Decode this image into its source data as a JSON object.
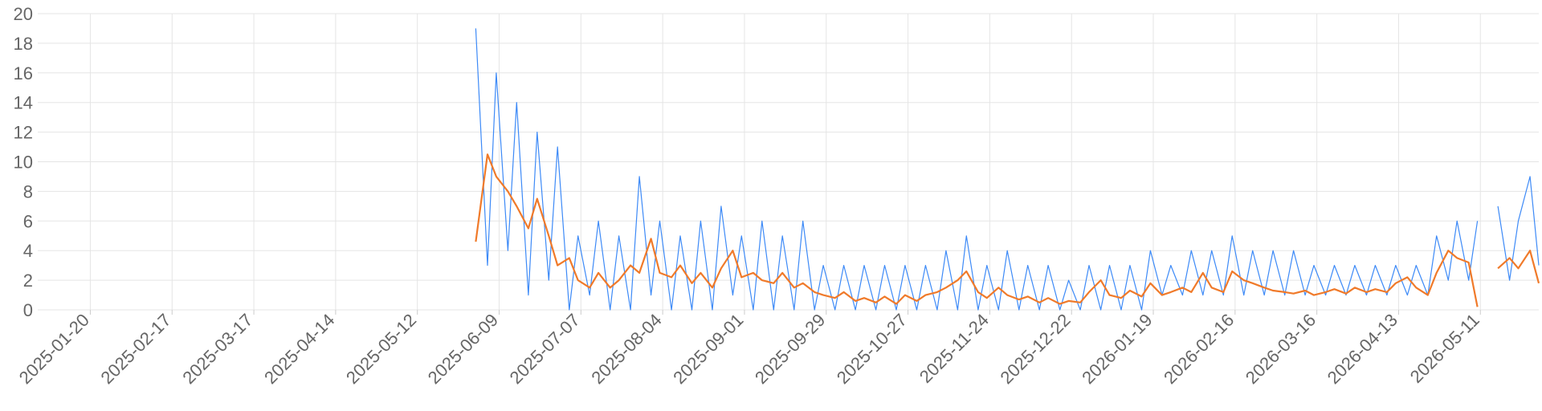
{
  "chart_data": {
    "type": "line",
    "x": [
      "2025-06-01",
      "2025-06-05",
      "2025-06-08",
      "2025-06-12",
      "2025-06-15",
      "2025-06-19",
      "2025-06-22",
      "2025-06-26",
      "2025-06-29",
      "2025-07-03",
      "2025-07-06",
      "2025-07-10",
      "2025-07-13",
      "2025-07-17",
      "2025-07-20",
      "2025-07-24",
      "2025-07-27",
      "2025-07-31",
      "2025-08-03",
      "2025-08-07",
      "2025-08-10",
      "2025-08-14",
      "2025-08-17",
      "2025-08-21",
      "2025-08-24",
      "2025-08-28",
      "2025-08-31",
      "2025-09-04",
      "2025-09-07",
      "2025-09-11",
      "2025-09-14",
      "2025-09-18",
      "2025-09-21",
      "2025-09-25",
      "2025-09-28",
      "2025-10-02",
      "2025-10-05",
      "2025-10-09",
      "2025-10-12",
      "2025-10-16",
      "2025-10-19",
      "2025-10-23",
      "2025-10-26",
      "2025-10-30",
      "2025-11-02",
      "2025-11-06",
      "2025-11-09",
      "2025-11-13",
      "2025-11-16",
      "2025-11-20",
      "2025-11-23",
      "2025-11-27",
      "2025-11-30",
      "2025-12-04",
      "2025-12-07",
      "2025-12-11",
      "2025-12-14",
      "2025-12-18",
      "2025-12-21",
      "2025-12-25",
      "2025-12-28",
      "2026-01-01",
      "2026-01-04",
      "2026-01-08",
      "2026-01-11",
      "2026-01-15",
      "2026-01-18",
      "2026-01-22",
      "2026-01-25",
      "2026-01-29",
      "2026-02-01",
      "2026-02-05",
      "2026-02-08",
      "2026-02-12",
      "2026-02-15",
      "2026-02-19",
      "2026-02-22",
      "2026-02-26",
      "2026-03-01",
      "2026-03-05",
      "2026-03-08",
      "2026-03-12",
      "2026-03-15",
      "2026-03-19",
      "2026-03-22",
      "2026-03-26",
      "2026-03-29",
      "2026-04-02",
      "2026-04-05",
      "2026-04-09",
      "2026-04-12",
      "2026-04-16",
      "2026-04-19",
      "2026-04-23",
      "2026-04-26",
      "2026-04-30",
      "2026-05-03",
      "2026-05-07",
      "2026-05-10",
      "2026-05-14",
      "2026-05-17",
      "2026-05-21",
      "2026-05-24",
      "2026-05-28",
      "2026-05-31"
    ],
    "series": [
      {
        "color": "#3d8af7",
        "values": [
          19,
          3,
          16,
          4,
          14,
          1,
          12,
          2,
          11,
          0,
          5,
          1,
          6,
          0,
          5,
          0,
          9,
          1,
          6,
          0,
          5,
          0,
          6,
          0,
          7,
          1,
          5,
          0,
          6,
          0,
          5,
          0,
          6,
          0,
          3,
          0,
          3,
          0,
          3,
          0,
          3,
          0,
          3,
          0,
          3,
          0,
          4,
          0,
          5,
          0,
          3,
          0,
          4,
          0,
          3,
          0,
          3,
          0,
          2,
          0,
          3,
          0,
          3,
          0,
          3,
          0,
          4,
          1,
          3,
          1,
          4,
          1,
          4,
          1,
          5,
          1,
          4,
          1,
          4,
          1,
          4,
          1,
          3,
          1,
          3,
          1,
          3,
          1,
          3,
          1,
          3,
          1,
          3,
          1,
          5,
          2,
          6,
          2,
          6,
          null,
          7,
          2,
          6,
          9,
          3
        ]
      },
      {
        "color": "#f07a2a",
        "values": [
          4.6,
          10.5,
          9,
          8,
          7,
          5.5,
          7.5,
          5,
          3,
          3.5,
          2,
          1.5,
          2.5,
          1.5,
          2,
          3,
          2.5,
          4.8,
          2.5,
          2.2,
          3,
          1.8,
          2.5,
          1.5,
          2.8,
          4,
          2.2,
          2.5,
          2,
          1.8,
          2.5,
          1.5,
          1.8,
          1.2,
          1,
          0.8,
          1.2,
          0.6,
          0.8,
          0.5,
          0.9,
          0.4,
          1,
          0.6,
          1,
          1.2,
          1.5,
          2,
          2.6,
          1.2,
          0.8,
          1.5,
          1,
          0.7,
          0.9,
          0.5,
          0.8,
          0.4,
          0.6,
          0.5,
          1.2,
          2,
          1,
          0.8,
          1.3,
          0.9,
          1.8,
          1,
          1.2,
          1.5,
          1.2,
          2.5,
          1.5,
          1.2,
          2.6,
          2,
          1.8,
          1.5,
          1.3,
          1.2,
          1.1,
          1.3,
          1,
          1.2,
          1.4,
          1.1,
          1.5,
          1.2,
          1.4,
          1.2,
          1.8,
          2.2,
          1.5,
          1,
          2.5,
          4,
          3.5,
          3.2,
          0.2,
          null,
          2.8,
          3.5,
          2.8,
          4,
          1.8
        ]
      }
    ],
    "xlim": [
      "2025-01-02",
      "2026-05-31"
    ],
    "xticks": [
      "2025-01-20",
      "2025-02-17",
      "2025-03-17",
      "2025-04-14",
      "2025-05-12",
      "2025-06-09",
      "2025-07-07",
      "2025-08-04",
      "2025-09-01",
      "2025-09-29",
      "2025-10-27",
      "2025-11-24",
      "2025-12-22",
      "2026-01-19",
      "2026-02-16",
      "2026-03-16",
      "2026-04-13",
      "2026-05-11"
    ],
    "ylim": [
      0,
      20
    ],
    "yticks": [
      0,
      2,
      4,
      6,
      8,
      10,
      12,
      14,
      16,
      18,
      20
    ],
    "grid": true
  }
}
